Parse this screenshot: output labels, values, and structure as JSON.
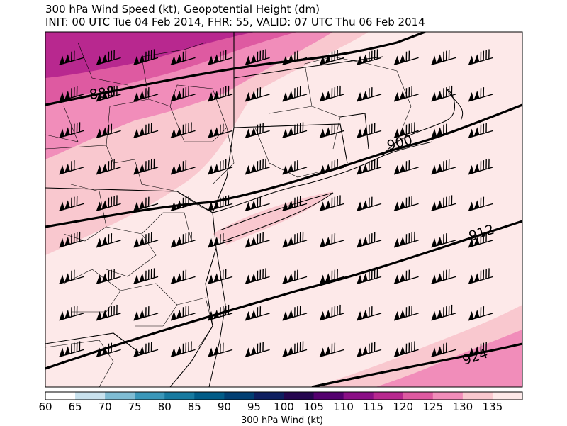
{
  "title": {
    "line1": "300 hPa Wind Speed (kt), Geopotential Height (dm)",
    "line2": "INIT: 00 UTC Tue 04 Feb 2014, FHR: 55, VALID: 07 UTC Thu 06 Feb 2014"
  },
  "contour_labels": [
    "888",
    "900",
    "912",
    "924"
  ],
  "colorbar": {
    "label": "300 hPa Wind (kt)",
    "ticks": [
      "60",
      "65",
      "70",
      "75",
      "80",
      "85",
      "90",
      "95",
      "100",
      "105",
      "110",
      "115",
      "120",
      "125",
      "130",
      "135"
    ],
    "colors": [
      "#ffffff",
      "#c9e2ee",
      "#7fbcd3",
      "#3a97b9",
      "#167aa0",
      "#005c88",
      "#003f73",
      "#0e1f60",
      "#25064f",
      "#54006f",
      "#8b0f86",
      "#b8288f",
      "#de5aa1",
      "#f18dba",
      "#f9c8cf",
      "#fde9e9"
    ]
  },
  "barb_columns": 12,
  "barb_rows": 9
}
